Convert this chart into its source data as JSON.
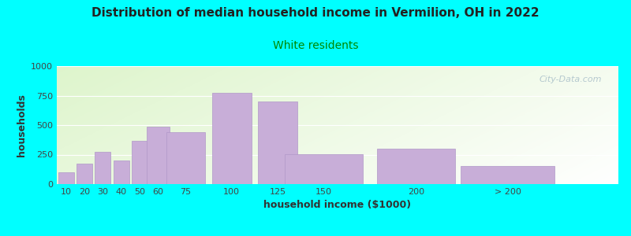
{
  "title": "Distribution of median household income in Vermilion, OH in 2022",
  "subtitle": "White residents",
  "xlabel": "household income ($1000)",
  "ylabel": "households",
  "background_color": "#00FFFF",
  "bar_color": "#c8aed8",
  "bar_edge_color": "#b098c8",
  "categories": [
    "10",
    "20",
    "30",
    "40",
    "50",
    "60",
    "75",
    "100",
    "125",
    "150",
    "200",
    "> 200"
  ],
  "values": [
    100,
    175,
    275,
    200,
    370,
    490,
    440,
    775,
    700,
    255,
    300,
    155
  ],
  "bar_positions": [
    10,
    20,
    30,
    40,
    50,
    60,
    75,
    100,
    125,
    150,
    200,
    250
  ],
  "bar_widths": [
    10,
    10,
    10,
    10,
    10,
    15,
    25,
    25,
    25,
    50,
    50,
    60
  ],
  "ylim": [
    0,
    1000
  ],
  "yticks": [
    0,
    250,
    500,
    750,
    1000
  ],
  "xlim": [
    5,
    310
  ],
  "xtick_positions": [
    10,
    20,
    30,
    40,
    50,
    60,
    75,
    100,
    125,
    150,
    200,
    250
  ],
  "xtick_labels": [
    "10",
    "20",
    "30",
    "40",
    "50",
    "60",
    "75",
    "100",
    "125",
    "150",
    "200",
    "> 200"
  ],
  "title_fontsize": 11,
  "subtitle_fontsize": 10,
  "subtitle_color": "#008800",
  "axis_label_fontsize": 9,
  "tick_fontsize": 8,
  "watermark": "City-Data.com"
}
